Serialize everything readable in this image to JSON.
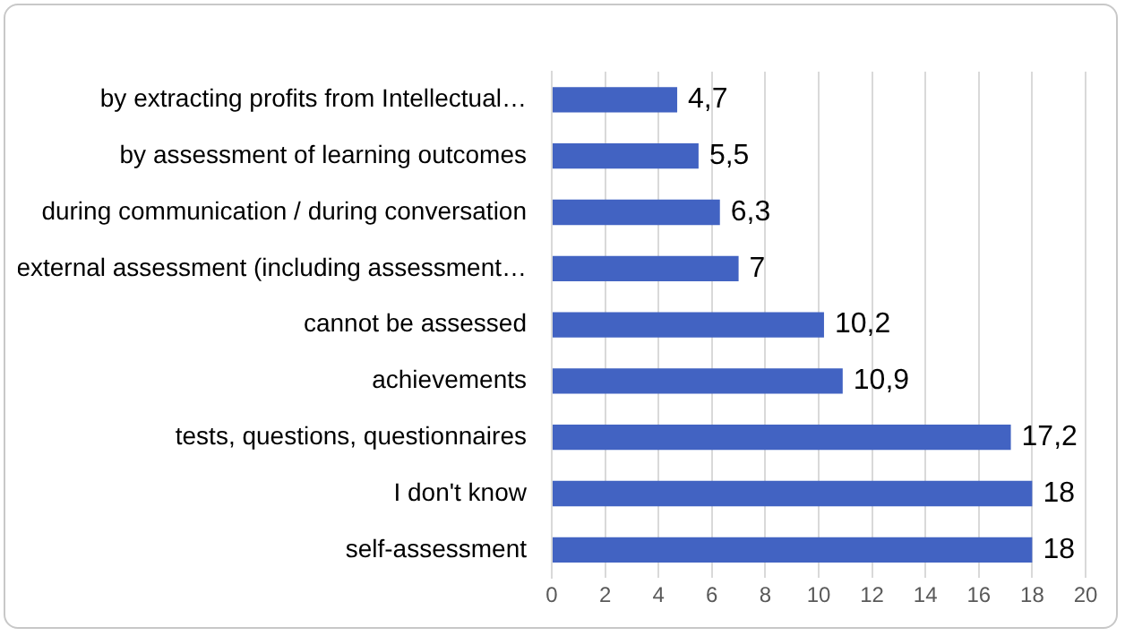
{
  "chart_data": {
    "type": "bar",
    "orientation": "horizontal",
    "categories": [
      "by extracting profits from Intellectual…",
      "by assessment of learning outcomes",
      "during communication / during conversation",
      "external assessment (including assessment…",
      "cannot be assessed",
      "achievements",
      "tests, questions, questionnaires",
      "I don't know",
      "self-assessment"
    ],
    "values": [
      4.7,
      5.5,
      6.3,
      7,
      10.2,
      10.9,
      17.2,
      18,
      18
    ],
    "value_labels": [
      "4,7",
      "5,5",
      "6,3",
      "7",
      "10,2",
      "10,9",
      "17,2",
      "18",
      "18"
    ],
    "color": "#4263c2",
    "xlim": [
      0,
      20
    ],
    "xticks": [
      0,
      2,
      4,
      6,
      8,
      10,
      12,
      14,
      16,
      18,
      20
    ],
    "grid": "x",
    "legend": false
  }
}
